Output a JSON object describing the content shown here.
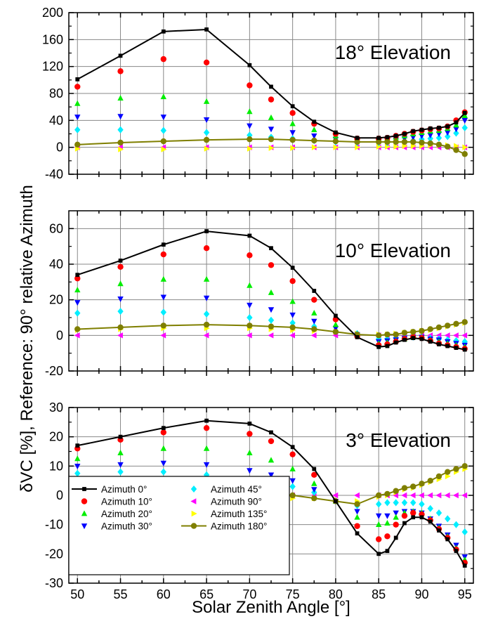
{
  "chart_data": {
    "type": "scatter",
    "xlabel": "Solar Zenith Angle [°]",
    "ylabel": "δVC [%], Reference: 90° relative Azimuth",
    "x_ticks": [
      50,
      55,
      60,
      65,
      70,
      75,
      80,
      85,
      90,
      95
    ],
    "xlim": [
      49,
      96
    ],
    "x": [
      50,
      55,
      60,
      65,
      70,
      72.5,
      75,
      77.5,
      80,
      82.5,
      85,
      86,
      87,
      88,
      89,
      90,
      91,
      92,
      93,
      94,
      95
    ],
    "legend_position": "bottom-left",
    "legend_entries": [
      {
        "name": "Azimuth 0°",
        "color": "#000000",
        "marker": "square",
        "line": true
      },
      {
        "name": "Azimuth 10°",
        "color": "#ff0000",
        "marker": "circle",
        "line": false
      },
      {
        "name": "Azimuth 20°",
        "color": "#00ee00",
        "marker": "triangle-up",
        "line": false
      },
      {
        "name": "Azimuth 30°",
        "color": "#0000ff",
        "marker": "triangle-down",
        "line": false
      },
      {
        "name": "Azimuth 45°",
        "color": "#00eeff",
        "marker": "diamond",
        "line": false
      },
      {
        "name": "Azimuth 90°",
        "color": "#ff00ff",
        "marker": "triangle-left",
        "line": false
      },
      {
        "name": "Azimuth 135°",
        "color": "#ffff00",
        "marker": "triangle-right",
        "line": false
      },
      {
        "name": "Azimuth 180°",
        "color": "#7f7f00",
        "marker": "circle",
        "line": true
      }
    ],
    "panels": [
      {
        "title": "18° Elevation",
        "ylim": [
          -40,
          200
        ],
        "y_ticks": [
          -40,
          0,
          40,
          80,
          120,
          160,
          200
        ],
        "series": [
          {
            "name": "Azimuth 0°",
            "values": [
              101,
              136,
              172,
              175,
              122,
              90,
              61,
              38,
              22,
              14,
              14,
              15,
              17,
              20,
              24,
              26,
              28,
              29,
              31,
              37,
              51
            ]
          },
          {
            "name": "Azimuth 10°",
            "values": [
              90,
              113,
              131,
              126,
              92,
              71,
              51,
              35,
              20,
              13,
              13,
              14,
              17,
              20,
              23,
              25,
              27,
              28,
              31,
              40,
              52
            ]
          },
          {
            "name": "Azimuth 20°",
            "values": [
              65,
              73,
              75,
              68,
              53,
              44,
              35,
              26,
              17,
              12,
              12,
              13,
              15,
              17,
              20,
              22,
              24,
              25,
              28,
              33,
              47
            ]
          },
          {
            "name": "Azimuth 30°",
            "values": [
              45,
              46,
              45,
              41,
              32,
              27,
              22,
              17,
              12,
              9,
              9,
              10,
              11,
              13,
              15,
              17,
              18,
              20,
              22,
              27,
              40
            ]
          },
          {
            "name": "Azimuth 45°",
            "values": [
              26,
              26,
              25,
              22,
              18,
              15,
              13,
              10,
              8,
              7,
              7,
              7,
              8,
              9,
              10,
              12,
              13,
              14,
              16,
              21,
              29
            ]
          },
          {
            "name": "Azimuth 90°",
            "values": [
              0,
              0,
              0,
              0,
              0,
              0,
              0,
              0,
              0,
              0,
              0,
              0,
              0,
              0,
              0,
              0,
              0,
              0,
              0,
              0,
              0
            ]
          },
          {
            "name": "Azimuth 135°",
            "values": [
              -2,
              -3,
              -3,
              -2,
              -2,
              -1,
              -1,
              0,
              0,
              0,
              1,
              1,
              1,
              2,
              2,
              2,
              3,
              3,
              3,
              2,
              0
            ]
          },
          {
            "name": "Azimuth 180°",
            "values": [
              4,
              7,
              9,
              11,
              12,
              12,
              11,
              10,
              9,
              8,
              8,
              8,
              8,
              8,
              8,
              7,
              6,
              4,
              1,
              -4,
              -10
            ]
          }
        ]
      },
      {
        "title": "10° Elevation",
        "ylim": [
          -20,
          70
        ],
        "y_ticks": [
          -20,
          0,
          20,
          40,
          60
        ],
        "series": [
          {
            "name": "Azimuth 0°",
            "values": [
              34,
              42,
              51,
              58.5,
              56,
              49,
              38,
              25,
              11,
              -1,
              -6.5,
              -6,
              -4,
              -2.5,
              -1.5,
              -2,
              -3.5,
              -5,
              -6,
              -7,
              -8
            ]
          },
          {
            "name": "Azimuth 10°",
            "values": [
              32,
              38.5,
              45.5,
              49,
              45,
              39.5,
              30.5,
              20,
              9,
              -0.5,
              -5.5,
              -5,
              -3.5,
              -2,
              -1,
              -1.5,
              -3,
              -4.5,
              -5.5,
              -6.5,
              -7.5
            ]
          },
          {
            "name": "Azimuth 20°",
            "values": [
              25.5,
              29,
              31.5,
              31.5,
              28,
              24,
              19,
              12.5,
              6,
              0.5,
              -4.5,
              -4,
              -3,
              -2,
              -1,
              -1,
              -2.5,
              -3.5,
              -4.5,
              -5.5,
              -6.5
            ]
          },
          {
            "name": "Azimuth 30°",
            "values": [
              18.5,
              20.5,
              21.5,
              21,
              17,
              14.5,
              11.5,
              8,
              4,
              0.5,
              -3.5,
              -3,
              -2.5,
              -1.5,
              -1,
              -1,
              -2,
              -2.5,
              -3.5,
              -4.5,
              -5.5
            ]
          },
          {
            "name": "Azimuth 45°",
            "values": [
              12.5,
              13.5,
              13,
              12,
              10,
              8.5,
              7,
              5,
              2.5,
              1,
              -2,
              -2,
              -1.5,
              -1,
              -1,
              -1,
              -1.5,
              -2,
              -2.5,
              -3,
              -3.5
            ]
          },
          {
            "name": "Azimuth 90°",
            "values": [
              0,
              0,
              0,
              0,
              0,
              0,
              0,
              0,
              0,
              0,
              0,
              0,
              0,
              0,
              0,
              0,
              0,
              0,
              0,
              0,
              0
            ]
          },
          {
            "name": "Azimuth 135°",
            "values": [
              3,
              3.5,
              4,
              4,
              4,
              3.5,
              3,
              2.5,
              2,
              1,
              0.5,
              0.5,
              1,
              1.5,
              2,
              2.5,
              3,
              4,
              5,
              6,
              7
            ]
          },
          {
            "name": "Azimuth 180°",
            "values": [
              3.5,
              4.5,
              5.5,
              6,
              5.5,
              5,
              4.5,
              3.5,
              2,
              0.5,
              0,
              0.5,
              0.5,
              1.5,
              2,
              2.5,
              3.5,
              4.5,
              5.5,
              6.5,
              7.5
            ]
          }
        ]
      },
      {
        "title": "3° Elevation",
        "ylim": [
          -30,
          30
        ],
        "y_ticks": [
          -30,
          -20,
          -10,
          0,
          10,
          20,
          30
        ],
        "series": [
          {
            "name": "Azimuth 0°",
            "values": [
              17,
              20,
              23,
              25.5,
              24.5,
              21.5,
              16.5,
              9,
              -2,
              -13,
              -20,
              -19,
              -14.5,
              -9.5,
              -7.5,
              -7.5,
              -9,
              -12,
              -15,
              -19,
              -24
            ]
          },
          {
            "name": "Azimuth 10°",
            "values": [
              16,
              19,
              21.5,
              23,
              21,
              18.5,
              14,
              7,
              -2,
              -10.5,
              -15,
              -14,
              -10,
              -7,
              -6,
              -6.5,
              -8.5,
              -11.5,
              -14.5,
              -18.5,
              -23
            ]
          },
          {
            "name": "Azimuth 20°",
            "values": [
              12.5,
              14.5,
              16,
              16,
              14.5,
              12,
              9,
              4,
              -2,
              -7.5,
              -10,
              -9.5,
              -7.5,
              -6,
              -5.5,
              -6,
              -8,
              -11,
              -14,
              -18,
              -22
            ]
          },
          {
            "name": "Azimuth 30°",
            "values": [
              10,
              10.5,
              11,
              10.5,
              8.5,
              7,
              5,
              2,
              -2,
              -5.5,
              -7,
              -7,
              -6,
              -5.5,
              -5.5,
              -6,
              -8,
              -10.5,
              -13.5,
              -17,
              -21
            ]
          },
          {
            "name": "Azimuth 45°",
            "values": [
              7.5,
              8,
              8,
              7,
              5.5,
              4.5,
              3,
              1,
              -2,
              -3.5,
              -3,
              -2.5,
              -2.5,
              -2.5,
              -2.5,
              -3,
              -4.5,
              -6,
              -8,
              -10,
              -12.5
            ]
          },
          {
            "name": "Azimuth 90°",
            "values": [
              0,
              0,
              0,
              0,
              0,
              0,
              0,
              0,
              0,
              0,
              0,
              0,
              0,
              0,
              0,
              0,
              0,
              0,
              0,
              0,
              0
            ]
          },
          {
            "name": "Azimuth 135°",
            "values": [
              0,
              0.5,
              0.5,
              0.5,
              0,
              -0.5,
              -1,
              -1,
              -1.5,
              -2,
              -0.5,
              0,
              1,
              2,
              2.5,
              3.5,
              4.5,
              5.5,
              6.5,
              8,
              9
            ]
          },
          {
            "name": "Azimuth 180°",
            "values": [
              0.8,
              1.2,
              1.5,
              1.3,
              1,
              0.5,
              0,
              -1,
              -2,
              -3,
              0,
              0.5,
              1.5,
              2.5,
              3,
              4,
              5,
              6.5,
              8,
              9,
              10
            ]
          }
        ]
      }
    ]
  }
}
